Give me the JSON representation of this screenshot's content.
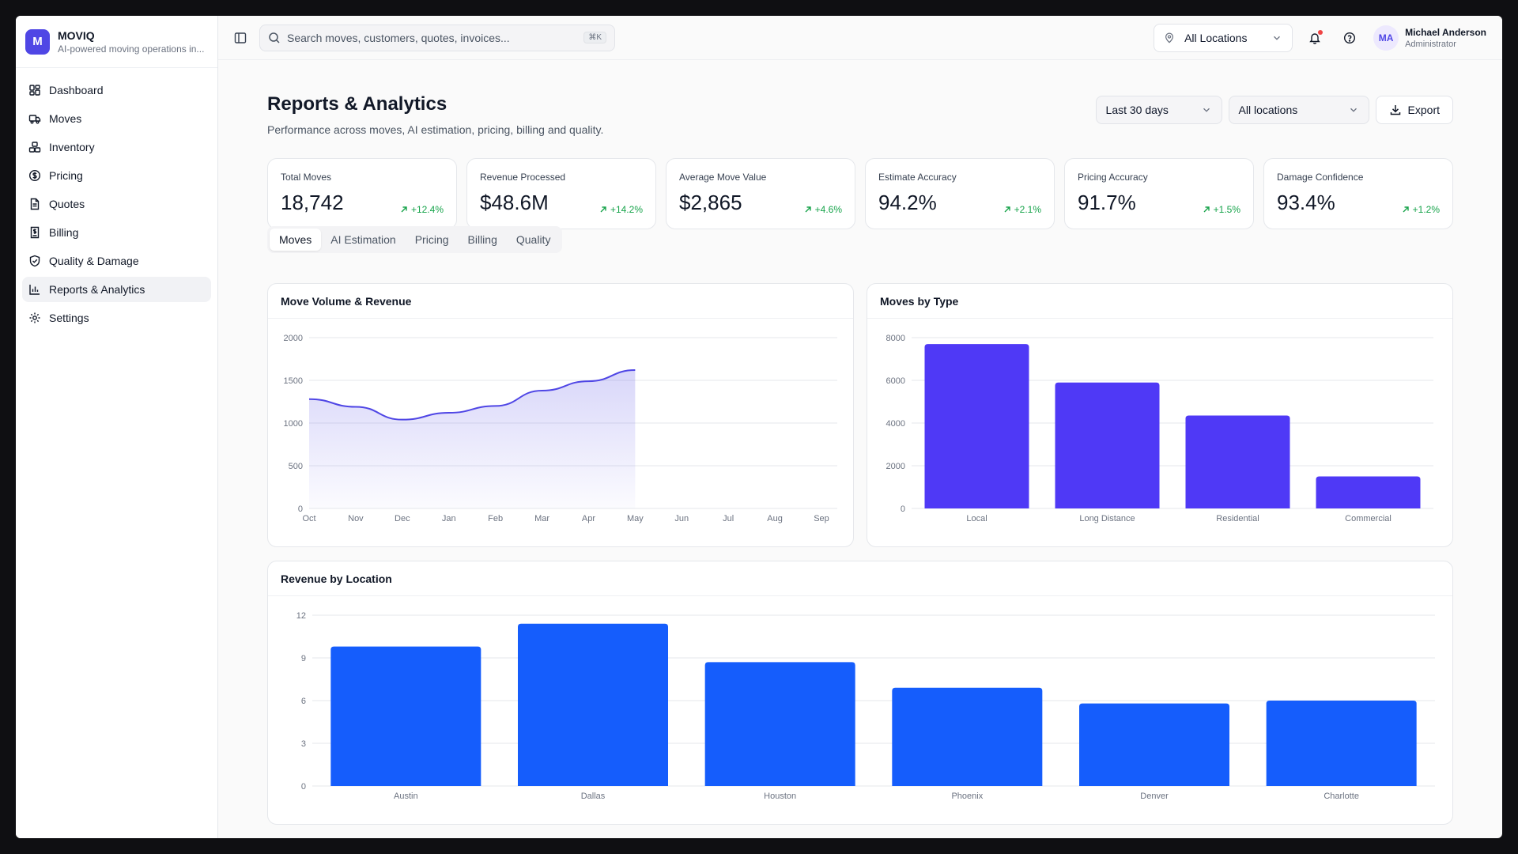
{
  "app": {
    "logo_letter": "M",
    "name": "MOVIQ",
    "subtitle": "AI-powered moving operations in..."
  },
  "sidebar": {
    "items": [
      {
        "label": "Dashboard",
        "icon": "dashboard-icon"
      },
      {
        "label": "Moves",
        "icon": "truck-icon"
      },
      {
        "label": "Inventory",
        "icon": "boxes-icon"
      },
      {
        "label": "Pricing",
        "icon": "dollar-icon"
      },
      {
        "label": "Quotes",
        "icon": "document-icon"
      },
      {
        "label": "Billing",
        "icon": "invoice-icon"
      },
      {
        "label": "Quality & Damage",
        "icon": "shield-icon"
      },
      {
        "label": "Reports & Analytics",
        "icon": "bar-chart-icon",
        "active": true
      },
      {
        "label": "Settings",
        "icon": "gear-icon"
      }
    ]
  },
  "topbar": {
    "search_placeholder": "Search moves, customers, quotes, invoices...",
    "search_shortcut": "⌘K",
    "location": "All Locations",
    "user": {
      "initials": "MA",
      "name": "Michael Anderson",
      "role": "Administrator"
    }
  },
  "page": {
    "title": "Reports & Analytics",
    "subtitle": "Performance across moves, AI estimation, pricing, billing and quality.",
    "date_range": "Last 30 days",
    "locations": "All locations",
    "export_label": "Export"
  },
  "stats": [
    {
      "label": "Total Moves",
      "value": "18,742",
      "delta": "+12.4%"
    },
    {
      "label": "Revenue Processed",
      "value": "$48.6M",
      "delta": "+14.2%"
    },
    {
      "label": "Average Move Value",
      "value": "$2,865",
      "delta": "+4.6%"
    },
    {
      "label": "Estimate Accuracy",
      "value": "94.2%",
      "delta": "+2.1%"
    },
    {
      "label": "Pricing Accuracy",
      "value": "91.7%",
      "delta": "+1.5%"
    },
    {
      "label": "Damage Confidence",
      "value": "93.4%",
      "delta": "+1.2%"
    }
  ],
  "tabs": [
    {
      "label": "Moves",
      "active": true
    },
    {
      "label": "AI Estimation"
    },
    {
      "label": "Pricing"
    },
    {
      "label": "Billing"
    },
    {
      "label": "Quality"
    }
  ],
  "colors": {
    "accent": "#4f46e5",
    "bar_purple": "#4f39f6",
    "bar_blue": "#155dfc",
    "positive": "#16a34a"
  },
  "chart_data": [
    {
      "type": "area",
      "title": "Move Volume & Revenue",
      "categories": [
        "Oct",
        "Nov",
        "Dec",
        "Jan",
        "Feb",
        "Mar",
        "Apr",
        "May",
        "Jun",
        "Jul",
        "Aug",
        "Sep"
      ],
      "values": [
        1280,
        1190,
        1040,
        1120,
        1200,
        1380,
        1490,
        1620,
        null,
        null,
        null,
        null
      ],
      "y_ticks": [
        "0",
        "500",
        "1000",
        "1500",
        "2000"
      ],
      "ylim": [
        0,
        2000
      ],
      "grid": true
    },
    {
      "type": "bar",
      "title": "Moves by Type",
      "categories": [
        "Local",
        "Long Distance",
        "Residential",
        "Commercial"
      ],
      "values": [
        7700,
        5900,
        4350,
        1500
      ],
      "y_ticks": [
        "0",
        "2000",
        "4000",
        "6000",
        "8000"
      ],
      "ylim": [
        0,
        8000
      ],
      "grid": true
    },
    {
      "type": "bar",
      "title": "Revenue by Location",
      "categories": [
        "Austin",
        "Dallas",
        "Houston",
        "Phoenix",
        "Denver",
        "Charlotte"
      ],
      "values": [
        9.8,
        11.4,
        8.7,
        6.9,
        5.8,
        6.0
      ],
      "y_ticks": [
        "0",
        "3",
        "6",
        "9",
        "12"
      ],
      "ylim": [
        0,
        12
      ],
      "grid": true
    }
  ]
}
